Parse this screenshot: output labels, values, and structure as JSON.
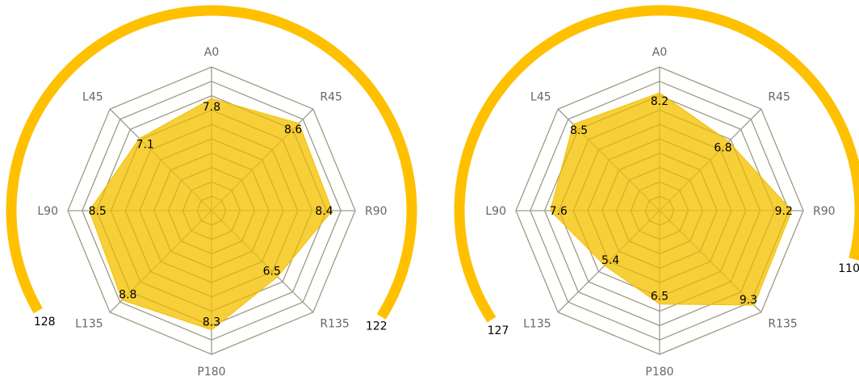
{
  "chart_data": [
    {
      "type": "radar",
      "axes": [
        "A0",
        "R45",
        "R90",
        "R135",
        "P180",
        "L135",
        "L90",
        "L45"
      ],
      "values": [
        7.8,
        8.6,
        8.4,
        6.5,
        8.3,
        8.8,
        8.5,
        7.1
      ],
      "value_labels": [
        "7.8",
        "8.6",
        "8.4",
        "6.5",
        "8.3",
        "8.8",
        "8.5",
        "7.1"
      ],
      "rlim": [
        0,
        10
      ],
      "rings": 10,
      "fill_color": "#f5c200",
      "arc": {
        "color": "#ffc000",
        "start_label": "128",
        "end_label": "122"
      }
    },
    {
      "type": "radar",
      "axes": [
        "A0",
        "R45",
        "R90",
        "R135",
        "P180",
        "L135",
        "L90",
        "L45"
      ],
      "values": [
        8.2,
        6.8,
        9.2,
        9.3,
        6.5,
        5.4,
        7.6,
        8.5
      ],
      "value_labels": [
        "8.2",
        "6.8",
        "9.2",
        "9.3",
        "6.5",
        "5.4",
        "7.6",
        "8.5"
      ],
      "rlim": [
        0,
        10
      ],
      "rings": 10,
      "fill_color": "#f5c200",
      "arc": {
        "color": "#ffc000",
        "start_label": "127",
        "end_label": "110"
      }
    }
  ]
}
